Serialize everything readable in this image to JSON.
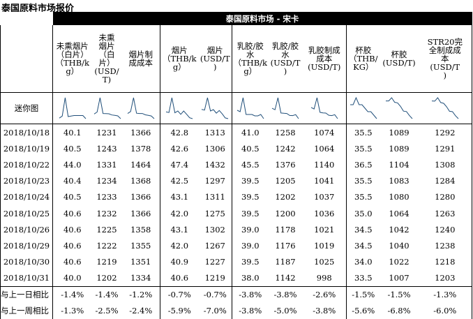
{
  "title": "泰国原料市场报价",
  "band_label": "泰国原料市场 - 宋卡",
  "sparkline_row_label": "迷你图",
  "columns": [
    "未熏烟片（白片）（THB/kg）",
    "未熏烟片（白片）(USD/T)",
    "烟片制成成本",
    "烟片（THB/kg）",
    "烟片(USD/T)",
    "乳胶/胶水（THB/kg）",
    "乳胶/胶水(USD/T)",
    "乳胶制成成本(USD/T)",
    "杯胶（THB/KG）",
    "杯胶(USD/T)",
    "STR20完全制成成本(USD/T)"
  ],
  "header_display": [
    [
      "未熏烟片",
      "（白片）",
      "（THB/k",
      "g）"
    ],
    [
      "未熏",
      "烟片",
      "（白",
      "片）",
      "(USD/",
      "T)"
    ],
    [
      "烟片制",
      "成成本"
    ],
    [
      "烟片",
      "（THB/k",
      "g）"
    ],
    [
      "烟片",
      "(USD/T",
      ")"
    ],
    [
      "乳胶/胶",
      "水",
      "（THB/k",
      "g）"
    ],
    [
      "乳胶/胶",
      "水",
      "(USD/T",
      ")"
    ],
    [
      "乳胶制成",
      "成本",
      "(USD/T)"
    ],
    [
      "杯胶",
      "（THB/",
      "KG）"
    ],
    [
      "杯胶",
      "(USD/T)"
    ],
    [
      "STR20完",
      "全制成成",
      "本",
      "(USD/T",
      ")"
    ]
  ],
  "rows": [
    {
      "date": "2018/10/18",
      "values": [
        "40.1",
        "1231",
        "1366",
        "42.8",
        "1313",
        "41.0",
        "1258",
        "1074",
        "35.5",
        "1089",
        "1292"
      ]
    },
    {
      "date": "2018/10/19",
      "values": [
        "40.5",
        "1243",
        "1378",
        "42.6",
        "1306",
        "40.5",
        "1242",
        "1064",
        "35.5",
        "1089",
        "1291"
      ]
    },
    {
      "date": "2018/10/22",
      "values": [
        "44.0",
        "1331",
        "1464",
        "47.4",
        "1432",
        "45.5",
        "1376",
        "1140",
        "36.5",
        "1104",
        "1308"
      ]
    },
    {
      "date": "2018/10/23",
      "values": [
        "40.4",
        "1234",
        "1368",
        "42.5",
        "1297",
        "39.5",
        "1205",
        "1041",
        "35.5",
        "1083",
        "1284"
      ]
    },
    {
      "date": "2018/10/24",
      "values": [
        "40.5",
        "1233",
        "1366",
        "43.1",
        "1311",
        "39.5",
        "1202",
        "1037",
        "35.5",
        "1080",
        "1280"
      ]
    },
    {
      "date": "2018/10/25",
      "values": [
        "40.6",
        "1232",
        "1366",
        "42.0",
        "1275",
        "39.5",
        "1200",
        "1036",
        "35.0",
        "1064",
        "1263"
      ]
    },
    {
      "date": "2018/10/26",
      "values": [
        "40.6",
        "1225",
        "1358",
        "43.1",
        "1302",
        "39.0",
        "1178",
        "1021",
        "34.5",
        "1042",
        "1240"
      ]
    },
    {
      "date": "2018/10/29",
      "values": [
        "40.6",
        "1222",
        "1355",
        "42.0",
        "1267",
        "39.0",
        "1176",
        "1019",
        "34.5",
        "1040",
        "1238"
      ]
    },
    {
      "date": "2018/10/30",
      "values": [
        "40.6",
        "1219",
        "1351",
        "40.9",
        "1227",
        "39.5",
        "1187",
        "1025",
        "34.0",
        "1022",
        "1218"
      ]
    },
    {
      "date": "2018/10/31",
      "values": [
        "40.0",
        "1202",
        "1334",
        "40.6",
        "1219",
        "38.0",
        "1142",
        "998",
        "33.5",
        "1007",
        "1203"
      ]
    }
  ],
  "changes": [
    {
      "label": "与上一日相比",
      "values": [
        "-1.4%",
        "-1.4%",
        "-1.2%",
        "-0.7%",
        "-0.7%",
        "-3.8%",
        "-3.8%",
        "-2.6%",
        "-1.5%",
        "-1.5%",
        "-1.3%"
      ]
    },
    {
      "label": "与上一周相比",
      "values": [
        "-1.3%",
        "-2.5%",
        "-2.4%",
        "-5.9%",
        "-7.0%",
        "-3.8%",
        "-5.0%",
        "-3.8%",
        "-5.6%",
        "-6.8%",
        "-6.0%"
      ]
    }
  ],
  "sparkline_color": "#1f4e79"
}
